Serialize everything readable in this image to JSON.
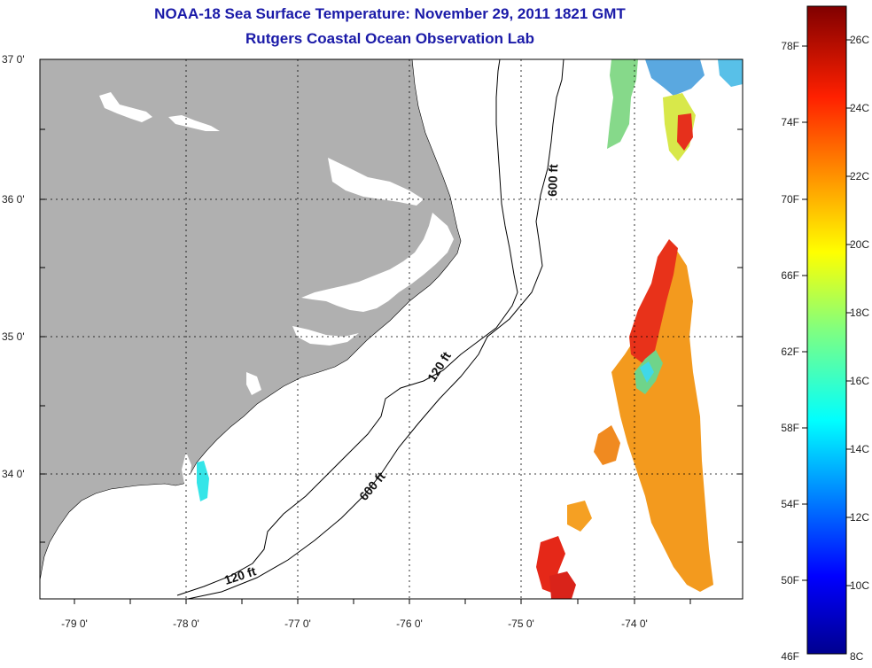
{
  "title": "NOAA-18 Sea Surface Temperature:  November 29, 2011 1821 GMT",
  "subtitle": "Rutgers Coastal Ocean Observation Lab",
  "lat_labels": [
    "37 0'",
    "36 0'",
    "35 0'",
    "34 0'"
  ],
  "lon_labels": [
    "-79 0'",
    "-78 0'",
    "-77 0'",
    "-76 0'",
    "-75 0'",
    "-74 0'"
  ],
  "contour_labels": [
    "600 ft",
    "120 ft",
    "600 ft",
    "120 ft"
  ],
  "colorbar": {
    "fahrenheit_labels": [
      "78F",
      "74F",
      "70F",
      "66F",
      "62F",
      "58F",
      "54F",
      "50F",
      "46F"
    ],
    "celsius_labels": [
      "26C",
      "24C",
      "22C",
      "20C",
      "18C",
      "16C",
      "14C",
      "12C",
      "10C",
      "8C"
    ]
  },
  "colors": {
    "land": "#b0b0b0",
    "title": "#1a1aa8",
    "grid": "#000000"
  }
}
